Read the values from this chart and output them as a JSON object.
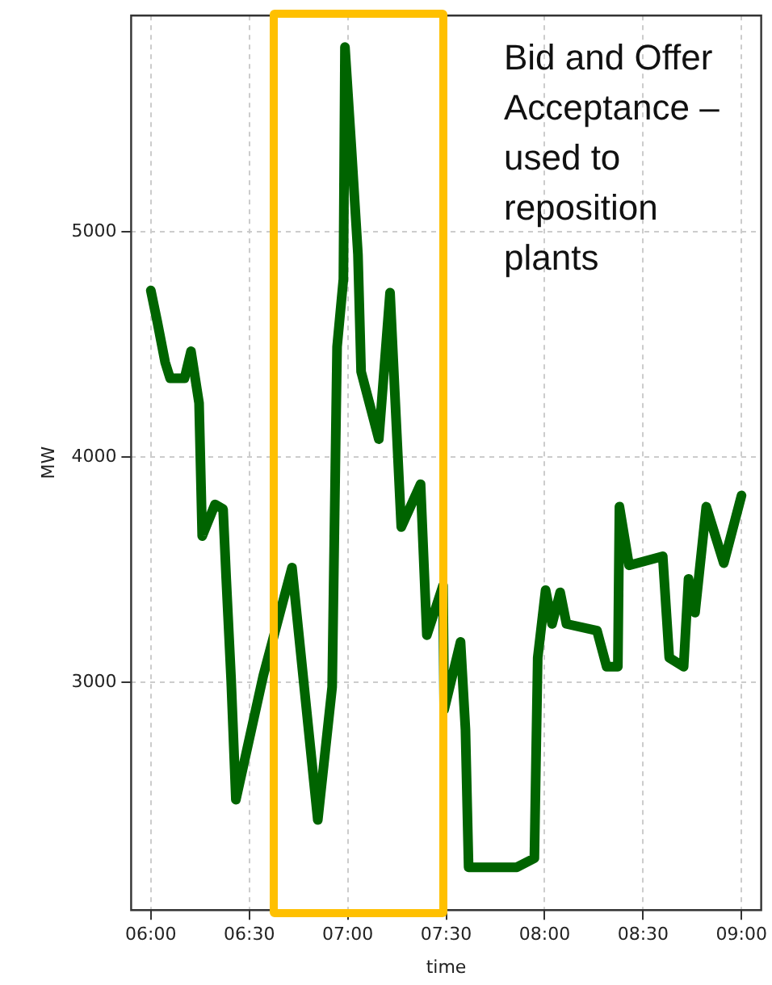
{
  "chart_data": {
    "type": "line",
    "xlabel": "time",
    "ylabel": "MW",
    "annotations": [
      "Bid and Offer Acceptance – used to reposition plants"
    ],
    "x": [
      6.0,
      6.033,
      6.073,
      6.098,
      6.171,
      6.204,
      6.245,
      6.261,
      6.326,
      6.367,
      6.383,
      6.408,
      6.432,
      6.571,
      6.717,
      6.848,
      6.921,
      6.937,
      6.946,
      6.978,
      6.986,
      7.019,
      7.052,
      7.068,
      7.158,
      7.215,
      7.239,
      7.272,
      7.37,
      7.402,
      7.484,
      7.49,
      7.573,
      7.598,
      7.614,
      7.859,
      7.948,
      7.965,
      8.005,
      8.038,
      8.079,
      8.111,
      8.266,
      8.315,
      8.372,
      8.38,
      8.429,
      8.6,
      8.633,
      8.706,
      8.731,
      8.764,
      8.821,
      8.91,
      9.0
    ],
    "series": [
      {
        "color": "#006400",
        "values": [
          4740,
          4600,
          4420,
          4350,
          4350,
          4470,
          4240,
          3650,
          3790,
          3770,
          3460,
          3010,
          2480,
          3030,
          3510,
          2390,
          2980,
          3950,
          4490,
          4790,
          5820,
          5370,
          4900,
          4380,
          4080,
          4730,
          4290,
          3690,
          3880,
          3210,
          3430,
          2880,
          3180,
          2790,
          2180,
          2180,
          2220,
          3110,
          3410,
          3260,
          3400,
          3260,
          3230,
          3070,
          3070,
          3780,
          3520,
          3560,
          3110,
          3070,
          3460,
          3310,
          3780,
          3530,
          3830
        ]
      }
    ],
    "xlim": [
      5.9,
      9.1
    ],
    "ylim": [
      1990,
      5960
    ],
    "xticks": [
      {
        "value": 6,
        "label": "06:00"
      },
      {
        "value": 6.5,
        "label": "06:30"
      },
      {
        "value": 7,
        "label": "07:00"
      },
      {
        "value": 7.5,
        "label": "07:30"
      },
      {
        "value": 8,
        "label": "08:00"
      },
      {
        "value": 8.5,
        "label": "08:30"
      },
      {
        "value": 9,
        "label": "09:00"
      }
    ],
    "yticks": [
      3000,
      4000,
      5000
    ],
    "grid": true,
    "marker": "none",
    "line_style": "solid",
    "legend": false
  }
}
